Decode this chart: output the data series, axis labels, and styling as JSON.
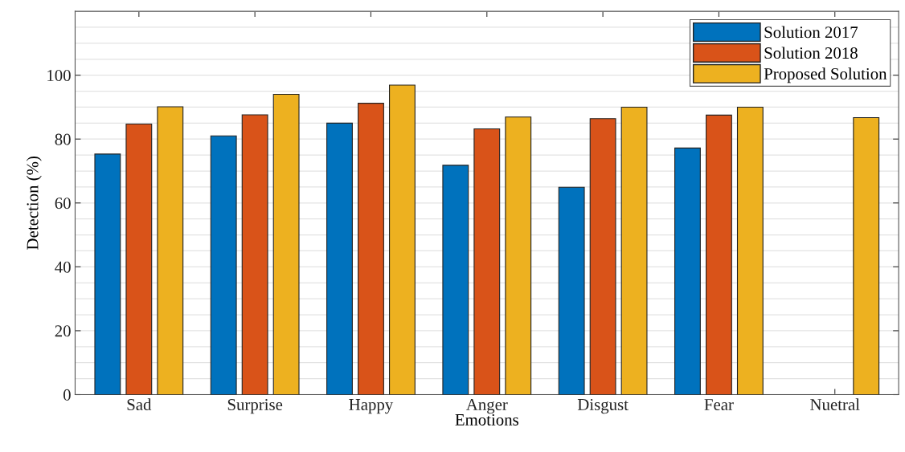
{
  "chart_data": {
    "type": "bar",
    "xlabel": "Emotions",
    "ylabel": "Detection (%)",
    "categories": [
      "Sad",
      "Surprise",
      "Happy",
      "Anger",
      "Disgust",
      "Fear",
      "Nuetral"
    ],
    "series": [
      {
        "name": "Solution 2017",
        "color": "#0072bd",
        "values": [
          75.3,
          81.0,
          85.0,
          71.8,
          64.9,
          77.2,
          null
        ]
      },
      {
        "name": "Solution 2018",
        "color": "#d95319",
        "values": [
          84.7,
          87.6,
          91.2,
          83.2,
          86.4,
          87.5,
          null
        ]
      },
      {
        "name": "Proposed Solution",
        "color": "#edb120",
        "values": [
          90.1,
          94.0,
          96.9,
          86.9,
          90.0,
          90.0,
          86.7
        ]
      }
    ],
    "ylim": [
      0,
      120
    ],
    "yticks": [
      0,
      20,
      40,
      60,
      80,
      100
    ],
    "grid": "y",
    "legend": "top right"
  }
}
